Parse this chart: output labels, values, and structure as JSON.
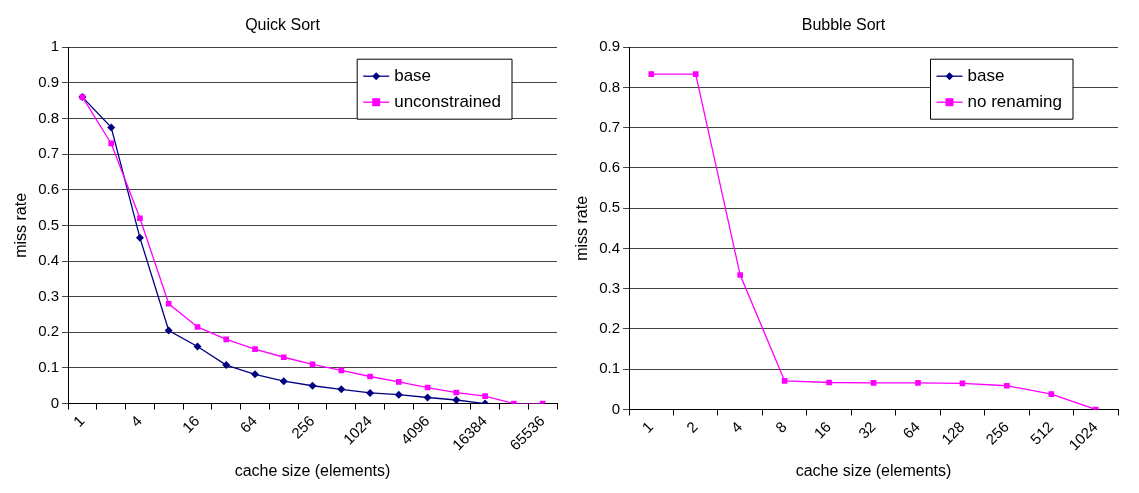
{
  "chart_data": [
    {
      "type": "line",
      "title": "Quick Sort",
      "xlabel": "cache size (elements)",
      "ylabel": "miss rate",
      "categories": [
        "1",
        null,
        "4",
        null,
        "16",
        null,
        "64",
        null,
        "256",
        null,
        "1024",
        null,
        "4096",
        null,
        "16384",
        null,
        "65536"
      ],
      "series": [
        {
          "name": "base",
          "color": "#000080",
          "marker": "diamond",
          "values": [
            0.86,
            0.775,
            0.465,
            0.205,
            0.16,
            0.108,
            0.082,
            0.063,
            0.05,
            0.04,
            0.03,
            0.025,
            0.017,
            0.01,
            0,
            null,
            null
          ]
        },
        {
          "name": "unconstrained",
          "color": "#ff00ff",
          "marker": "square",
          "values": [
            0.86,
            0.73,
            0.52,
            0.28,
            0.215,
            0.18,
            0.153,
            0.13,
            0.11,
            0.093,
            0.076,
            0.061,
            0.045,
            0.031,
            0.021,
            0,
            0
          ]
        }
      ],
      "ylim": [
        0,
        1
      ],
      "yticks": [
        0,
        0.1,
        0.2,
        0.3,
        0.4,
        0.5,
        0.6,
        0.7,
        0.8,
        0.9,
        1
      ],
      "grid": "y",
      "legend": "top right"
    },
    {
      "type": "line",
      "title": "Bubble Sort",
      "xlabel": "cache size (elements)",
      "ylabel": "miss rate",
      "categories": [
        "1",
        "2",
        "4",
        "8",
        "16",
        "32",
        "64",
        "128",
        "256",
        "512",
        "1024"
      ],
      "series": [
        {
          "name": "base",
          "color": "#000080",
          "marker": "diamond",
          "values": [
            null,
            null,
            null,
            null,
            null,
            null,
            null,
            null,
            null,
            null,
            null
          ]
        },
        {
          "name": "no renaming",
          "color": "#ff00ff",
          "marker": "square",
          "values": [
            0.833,
            0.833,
            0.334,
            0.071,
            0.067,
            0.066,
            0.066,
            0.065,
            0.059,
            0.038,
            0
          ]
        }
      ],
      "ylim": [
        0,
        0.9
      ],
      "yticks": [
        0,
        0.1,
        0.2,
        0.3,
        0.4,
        0.5,
        0.6,
        0.7,
        0.8,
        0.9
      ],
      "grid": "y",
      "legend": "top right"
    }
  ]
}
